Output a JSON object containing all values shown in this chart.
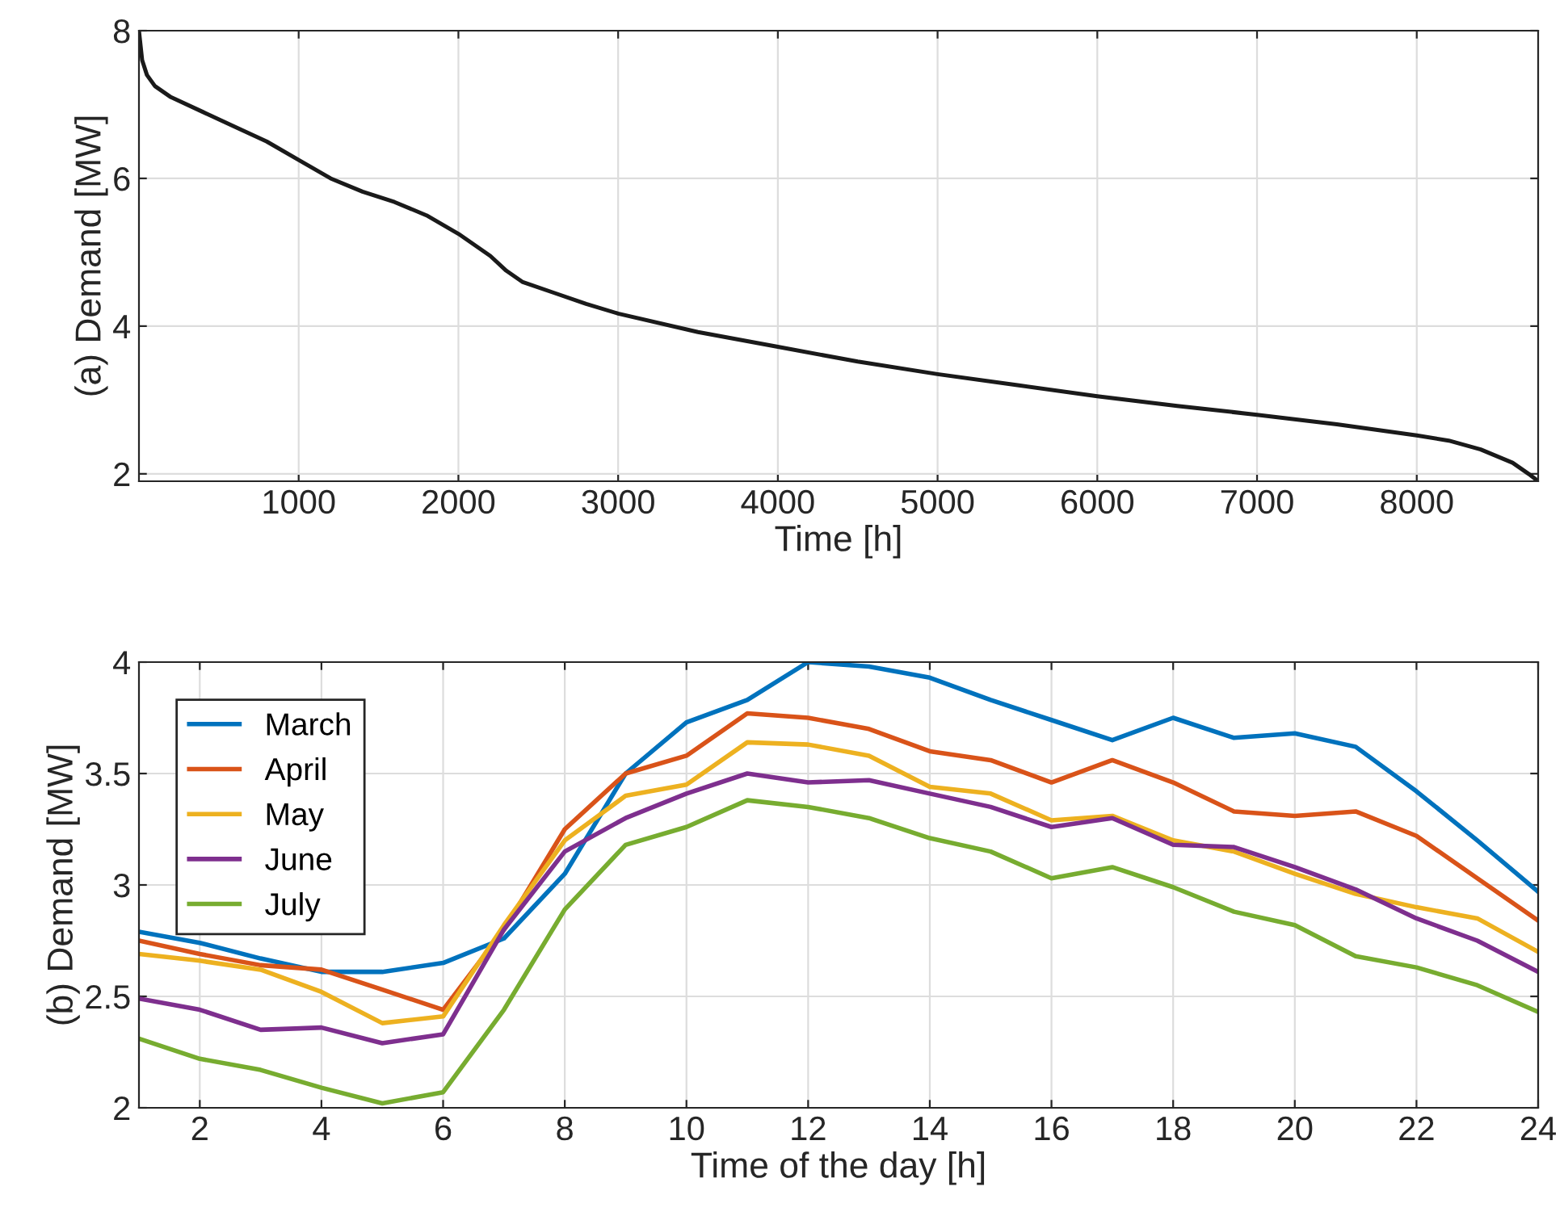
{
  "chart_data": [
    {
      "type": "line",
      "xlabel": "Time [h]",
      "ylabel": "(a) Demand [MW]",
      "xlim": [
        0,
        8760
      ],
      "ylim": [
        1.9,
        8
      ],
      "xticks": [
        1000,
        2000,
        3000,
        4000,
        5000,
        6000,
        7000,
        8000
      ],
      "yticks": [
        2,
        4,
        6,
        8
      ],
      "grid": true,
      "series": [
        {
          "color": "#1a1a1a",
          "x": [
            0,
            20,
            50,
            100,
            200,
            400,
            600,
            800,
            1000,
            1200,
            1400,
            1600,
            1800,
            2000,
            2200,
            2300,
            2400,
            2600,
            2800,
            3000,
            3500,
            4000,
            4500,
            5000,
            5500,
            6000,
            6500,
            7000,
            7500,
            8000,
            8200,
            8400,
            8600,
            8700,
            8760
          ],
          "values": [
            8.0,
            7.6,
            7.4,
            7.25,
            7.1,
            6.9,
            6.7,
            6.5,
            6.25,
            6.0,
            5.82,
            5.68,
            5.5,
            5.25,
            4.95,
            4.75,
            4.6,
            4.45,
            4.3,
            4.17,
            3.92,
            3.72,
            3.52,
            3.35,
            3.2,
            3.05,
            2.92,
            2.8,
            2.67,
            2.52,
            2.45,
            2.33,
            2.15,
            2.0,
            1.9
          ]
        }
      ]
    },
    {
      "type": "line",
      "xlabel": "Time of the day [h]",
      "ylabel": "(b) Demand [MW]",
      "xlim": [
        1,
        24
      ],
      "ylim": [
        2,
        4
      ],
      "xticks": [
        2,
        4,
        6,
        8,
        10,
        12,
        14,
        16,
        18,
        20,
        22,
        24
      ],
      "yticks": [
        2,
        2.5,
        3,
        3.5,
        4
      ],
      "grid": true,
      "legend": "top left",
      "x": [
        1,
        2,
        3,
        4,
        5,
        6,
        7,
        8,
        9,
        10,
        11,
        12,
        13,
        14,
        15,
        16,
        17,
        18,
        19,
        20,
        21,
        22,
        23,
        24
      ],
      "series": [
        {
          "name": "March",
          "color": "#0072bd",
          "values": [
            2.79,
            2.74,
            2.67,
            2.61,
            2.61,
            2.65,
            2.76,
            3.05,
            3.5,
            3.73,
            3.83,
            4.0,
            3.98,
            3.93,
            3.83,
            3.74,
            3.65,
            3.75,
            3.66,
            3.68,
            3.62,
            3.42,
            3.2,
            2.97
          ]
        },
        {
          "name": "April",
          "color": "#d95319",
          "values": [
            2.75,
            2.69,
            2.64,
            2.62,
            2.53,
            2.44,
            2.8,
            3.25,
            3.5,
            3.58,
            3.77,
            3.75,
            3.7,
            3.6,
            3.56,
            3.46,
            3.56,
            3.46,
            3.33,
            3.31,
            3.33,
            3.22,
            3.03,
            2.84
          ]
        },
        {
          "name": "May",
          "color": "#edb120",
          "values": [
            2.69,
            2.66,
            2.62,
            2.52,
            2.38,
            2.41,
            2.82,
            3.2,
            3.4,
            3.45,
            3.64,
            3.63,
            3.58,
            3.44,
            3.41,
            3.29,
            3.31,
            3.2,
            3.15,
            3.05,
            2.96,
            2.9,
            2.85,
            2.7
          ]
        },
        {
          "name": "June",
          "color": "#7e2f8e",
          "values": [
            2.49,
            2.44,
            2.35,
            2.36,
            2.29,
            2.33,
            2.8,
            3.15,
            3.3,
            3.41,
            3.5,
            3.46,
            3.47,
            3.41,
            3.35,
            3.26,
            3.3,
            3.18,
            3.17,
            3.08,
            2.98,
            2.85,
            2.75,
            2.61
          ]
        },
        {
          "name": "July",
          "color": "#77ac30",
          "values": [
            2.31,
            2.22,
            2.17,
            2.09,
            2.02,
            2.07,
            2.44,
            2.89,
            3.18,
            3.26,
            3.38,
            3.35,
            3.3,
            3.21,
            3.15,
            3.03,
            3.08,
            2.99,
            2.88,
            2.82,
            2.68,
            2.63,
            2.55,
            2.43
          ]
        }
      ]
    }
  ]
}
